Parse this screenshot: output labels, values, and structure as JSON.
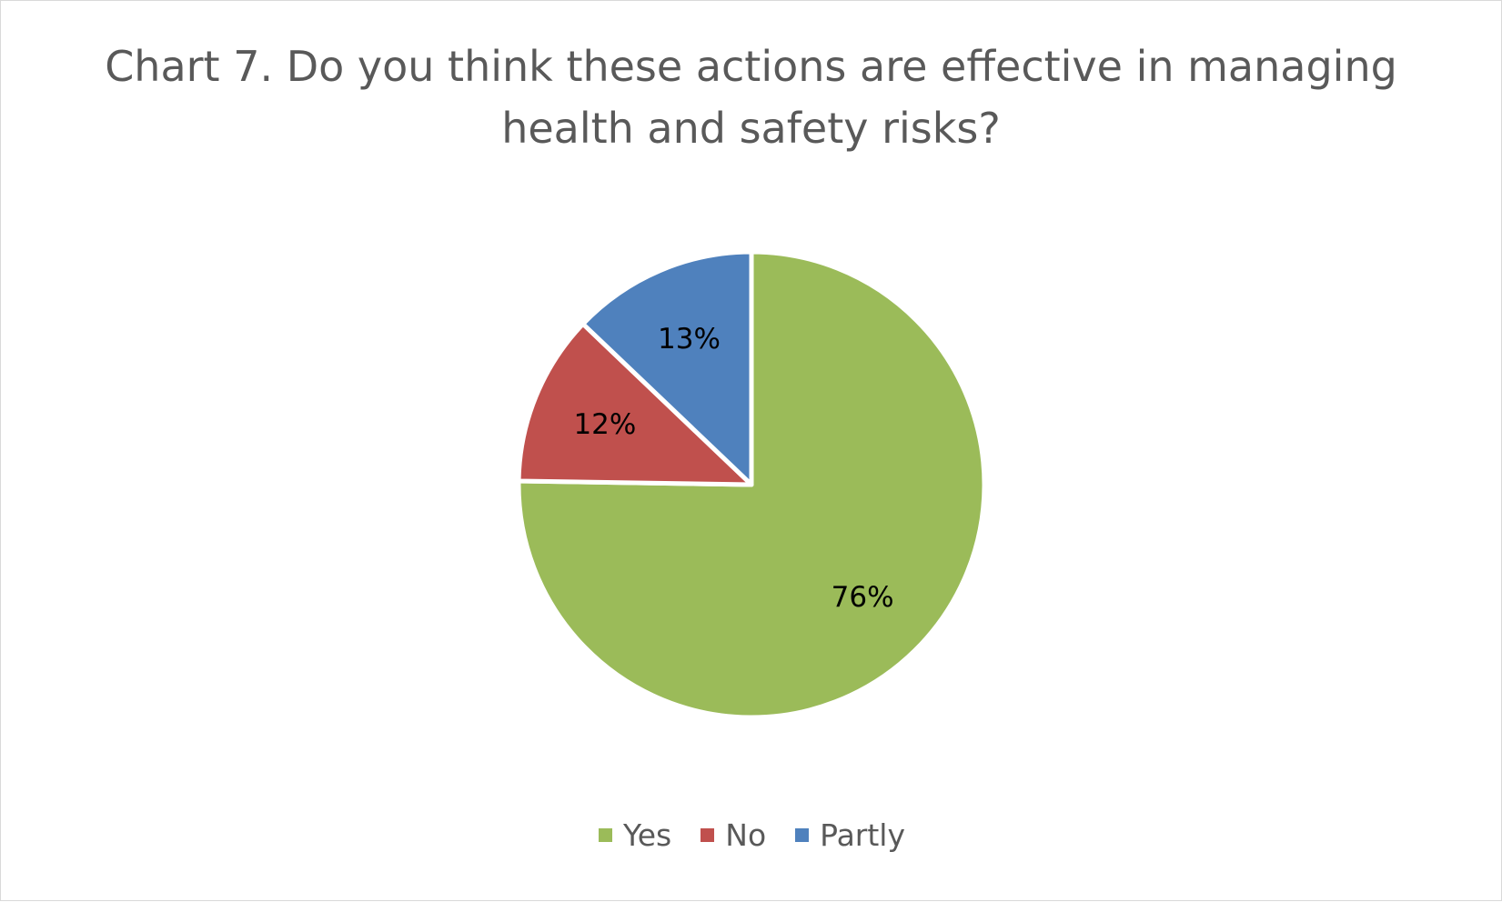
{
  "chart_data": {
    "type": "pie",
    "title": "Chart 7. Do you think these actions are effective in managing health and safety risks?",
    "categories": [
      "Yes",
      "No",
      "Partly"
    ],
    "values": [
      76,
      12,
      13
    ],
    "labels": [
      "76%",
      "12%",
      "13%"
    ],
    "colors": [
      "#9bbb59",
      "#c0504d",
      "#4f81bd"
    ],
    "legend": "bottom"
  }
}
